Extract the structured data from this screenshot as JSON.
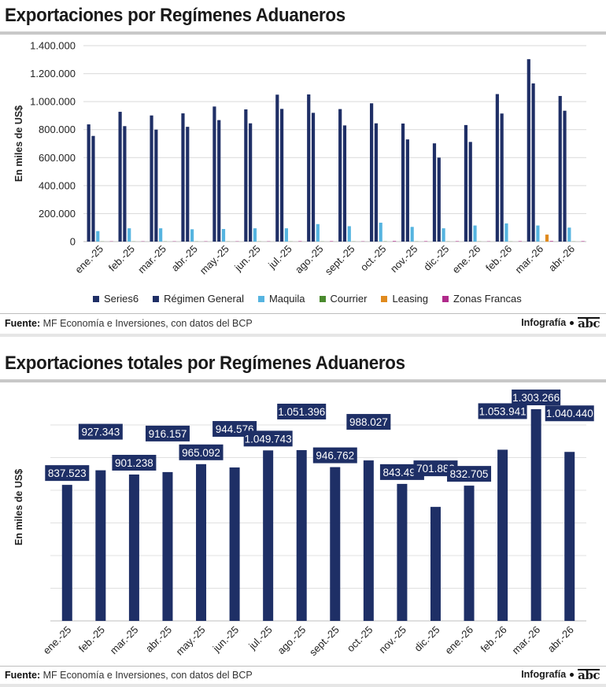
{
  "top_panel": {
    "title": "Exportaciones por Regímenes Aduaneros",
    "source_label": "Fuente:",
    "source_text": "MF Economía e Inversiones, con datos del BCP",
    "credit": "Infografía",
    "logo": "abc"
  },
  "bottom_panel": {
    "title": "Exportaciones totales por Regímenes Aduaneros",
    "source_label": "Fuente:",
    "source_text": "MF Economía e Inversiones, con datos del BCP",
    "credit": "Infografía",
    "logo": "abc"
  },
  "colors": {
    "Series6": "#1f2f66",
    "Régimen General": "#1f2f66",
    "Maquila": "#56b4e0",
    "Courrier": "#4a8a2e",
    "Leasing": "#e08a1e",
    "Zonas Francas": "#b02a8a",
    "total_bar": "#1e2f66",
    "label_bg": "#1e2f66",
    "label_text": "#ffffff"
  },
  "chart_data": [
    {
      "type": "bar",
      "title": "Exportaciones por Regímenes Aduaneros",
      "ylabel": "En miles de US$",
      "ylim": [
        0,
        1400000
      ],
      "yticks": [
        0,
        200000,
        400000,
        600000,
        800000,
        1000000,
        1200000,
        1400000
      ],
      "ytick_labels": [
        "0",
        "200.000",
        "400.000",
        "600.000",
        "800.000",
        "1.000.000",
        "1.200.000",
        "1.400.000"
      ],
      "grid": true,
      "legend": "bottom",
      "categories": [
        "ene.-25",
        "feb.-25",
        "mar.-25",
        "abr.-25",
        "may.-25",
        "jun.-25",
        "jul.-25",
        "ago.-25",
        "sept.-25",
        "oct.-25",
        "nov.-25",
        "dic.-25",
        "ene.-26",
        "feb.-26",
        "mar.-26",
        "abr.-26"
      ],
      "series": [
        {
          "name": "Series6",
          "values": [
            837523,
            927343,
            901238,
            916157,
            965092,
            944576,
            1049743,
            1051396,
            946762,
            988027,
            843492,
            701883,
            832705,
            1053941,
            1303266,
            1040440
          ]
        },
        {
          "name": "Régimen General",
          "values": [
            755000,
            825000,
            800000,
            820000,
            868000,
            845000,
            948000,
            920000,
            830000,
            845000,
            730000,
            600000,
            712000,
            915000,
            1130000,
            935000
          ]
        },
        {
          "name": "Maquila",
          "values": [
            75000,
            95000,
            95000,
            88000,
            90000,
            95000,
            95000,
            125000,
            110000,
            135000,
            105000,
            95000,
            115000,
            130000,
            115000,
            100000
          ]
        },
        {
          "name": "Courrier",
          "values": [
            1000,
            1000,
            1000,
            1000,
            1000,
            1000,
            1000,
            1000,
            1000,
            1500,
            1000,
            1000,
            1000,
            1000,
            1000,
            1000
          ]
        },
        {
          "name": "Leasing",
          "values": [
            0,
            0,
            0,
            0,
            0,
            0,
            0,
            0,
            0,
            0,
            0,
            0,
            0,
            0,
            50000,
            0
          ]
        },
        {
          "name": "Zonas Francas",
          "values": [
            2000,
            2000,
            2000,
            2000,
            2000,
            2000,
            3000,
            3000,
            2000,
            4000,
            3000,
            3000,
            2000,
            3000,
            4000,
            3000
          ]
        }
      ]
    },
    {
      "type": "bar",
      "title": "Exportaciones totales por Regímenes Aduaneros",
      "ylabel": "En miles de US$",
      "ylim": [
        0,
        1400000
      ],
      "grid": true,
      "categories": [
        "ene.-25",
        "feb.-25",
        "mar.-25",
        "abr.-25",
        "may.-25",
        "jun.-25",
        "jul.-25",
        "ago.-25",
        "sept.-25",
        "oct.-25",
        "nov.-25",
        "dic.-25",
        "ene.-26",
        "feb.-26",
        "mar.-26",
        "abr.-26"
      ],
      "values": [
        837523,
        927343,
        901238,
        916157,
        965092,
        944576,
        1049743,
        1051396,
        946762,
        988027,
        843492,
        701883,
        832705,
        1053941,
        1303266,
        1040440
      ],
      "data_labels": [
        "837.523",
        "927.343",
        "901.238",
        "916.157",
        "965.092",
        "944.576",
        "1.049.743",
        "1.051.396",
        "946.762",
        "988.027",
        "843.492",
        "701.883",
        "832.705",
        "1.053.941",
        "1.303.266",
        "1.040.440"
      ]
    }
  ]
}
